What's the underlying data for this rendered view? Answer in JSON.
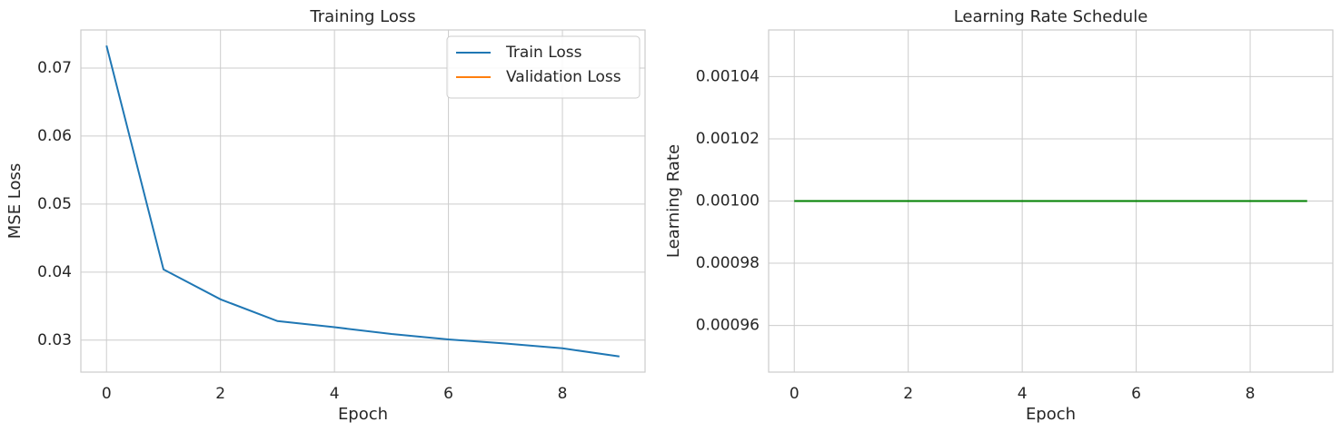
{
  "chart_data": [
    {
      "type": "line",
      "title": "Training Loss",
      "xlabel": "Epoch",
      "ylabel": "MSE Loss",
      "x": [
        0,
        1,
        2,
        3,
        4,
        5,
        6,
        7,
        8,
        9
      ],
      "series": [
        {
          "name": "Train Loss",
          "color": "#1f77b4",
          "values": [
            0.0733,
            0.0404,
            0.036,
            0.0328,
            0.0319,
            0.0309,
            0.0301,
            0.0295,
            0.0288,
            0.0276
          ]
        },
        {
          "name": "Validation Loss",
          "color": "#ff7f0e",
          "values": [
            null,
            null,
            null,
            null,
            null,
            null,
            null,
            null,
            null,
            null
          ]
        }
      ],
      "xlim": [
        -0.45,
        9.45
      ],
      "xticks": [
        0,
        2,
        4,
        6,
        8
      ],
      "ylim": [
        0.0253,
        0.0756
      ],
      "yticks": [
        0.03,
        0.04,
        0.05,
        0.06,
        0.07
      ],
      "grid": true,
      "legend": "upper right"
    },
    {
      "type": "line",
      "title": "Learning Rate Schedule",
      "xlabel": "Epoch",
      "ylabel": "Learning Rate",
      "x": [
        0,
        1,
        2,
        3,
        4,
        5,
        6,
        7,
        8,
        9
      ],
      "series": [
        {
          "color": "#008000",
          "values": [
            0.001,
            0.001,
            0.001,
            0.001,
            0.001,
            0.001,
            0.001,
            0.001,
            0.001,
            0.001
          ]
        }
      ],
      "xlim": [
        -0.45,
        9.45
      ],
      "xticks": [
        0,
        2,
        4,
        6,
        8
      ],
      "ylim": [
        0.000945,
        0.001055
      ],
      "yticks": [
        0.00096,
        0.00098,
        {
          "value": 0.001,
          "label": "0.00100"
        },
        0.00102,
        0.00104
      ],
      "grid": true
    }
  ]
}
